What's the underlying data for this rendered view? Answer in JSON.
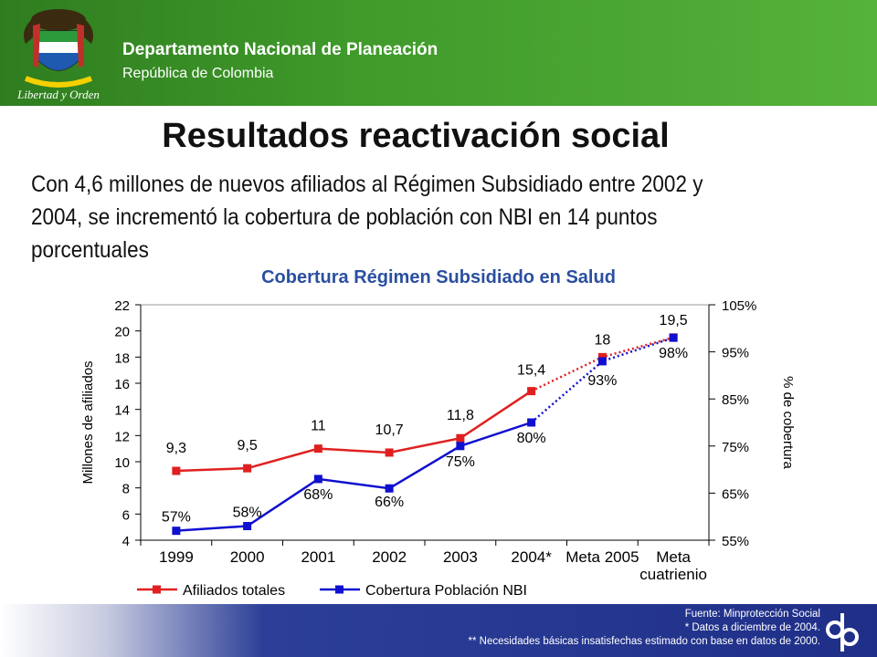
{
  "header": {
    "org_name": "Departamento Nacional de Planeación",
    "org_sub": "República de Colombia",
    "logo_caption": "Libertad y Orden"
  },
  "title": "Resultados reactivación social",
  "subtitle": "Con 4,6 millones de nuevos afiliados al Régimen Subsidiado entre 2002 y 2004, se incrementó la cobertura de población con NBI en 14 puntos porcentuales",
  "chart_data": {
    "type": "line",
    "title": "Cobertura Régimen Subsidiado en Salud",
    "categories": [
      "1999",
      "2000",
      "2001",
      "2002",
      "2003",
      "2004*",
      "Meta 2005",
      "Meta cuatrienio"
    ],
    "ylabel": "Millones de afiliados",
    "y2label": "% de cobertura",
    "ylim": [
      4,
      22
    ],
    "y2lim": [
      55,
      105
    ],
    "yticks": [
      "4",
      "6",
      "8",
      "10",
      "12",
      "14",
      "16",
      "18",
      "20",
      "22"
    ],
    "y2ticks": [
      "55%",
      "65%",
      "75%",
      "85%",
      "95%",
      "105%"
    ],
    "series": [
      {
        "name": "Afiliados totales",
        "axis": "left",
        "color": "#e02020",
        "values": [
          9.3,
          9.5,
          11,
          10.7,
          11.8,
          15.4,
          18,
          19.5
        ],
        "labels": [
          "9,3",
          "9,5",
          "11",
          "10,7",
          "11,8",
          "15,4",
          "18",
          "19,5"
        ]
      },
      {
        "name": "Cobertura Población NBI",
        "axis": "right",
        "color": "#1010d0",
        "values": [
          57,
          58,
          68,
          66,
          75,
          80,
          93,
          98
        ],
        "labels": [
          "57%",
          "58%",
          "68%",
          "66%",
          "75%",
          "80%",
          "93%",
          "98%"
        ]
      }
    ],
    "projection_from_index": 5,
    "legend": "bottom",
    "grid": false
  },
  "footer": {
    "source": "Fuente: Minprotección Social",
    "note1": "* Datos a diciembre de 2004.",
    "note2": "** Necesidades básicas insatisfechas  estimado con base en datos de 2000."
  },
  "colors": {
    "header": "#3f9a2a",
    "footer": "#1f2f88",
    "title_blue": "#2b4fa0"
  }
}
